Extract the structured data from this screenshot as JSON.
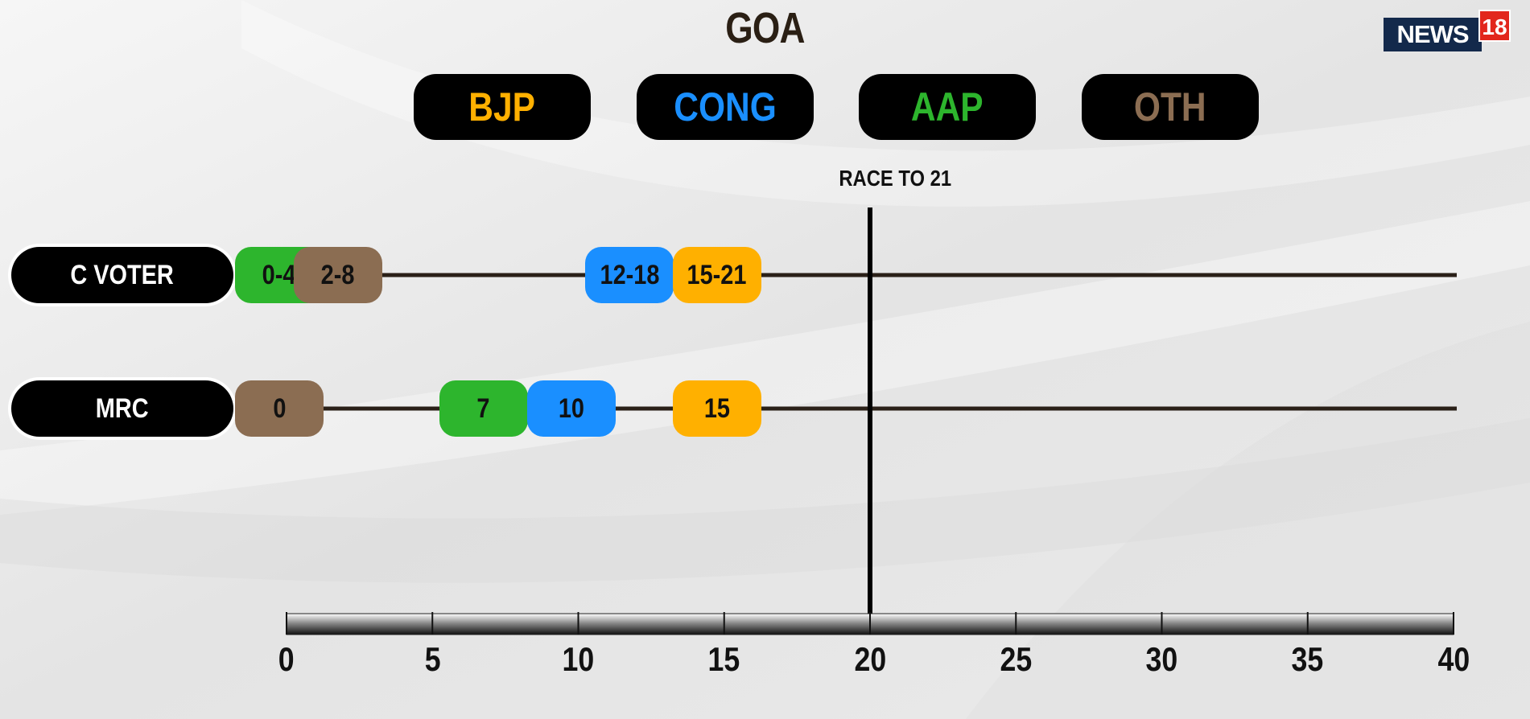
{
  "title": "GOA",
  "logo": {
    "text": "NEWS",
    "number": "18"
  },
  "colors": {
    "BJP": "#ffb000",
    "CONG": "#1a8fff",
    "AAP": "#2db52d",
    "OTH": "#8b6d52"
  },
  "legend": [
    {
      "label": "BJP",
      "key": "BJP"
    },
    {
      "label": "CONG",
      "key": "CONG"
    },
    {
      "label": "AAP",
      "key": "AAP"
    },
    {
      "label": "OTH",
      "key": "OTH"
    }
  ],
  "chart_data": {
    "type": "range-dot",
    "title": "GOA",
    "x_axis": {
      "min": 0,
      "max": 40,
      "ticks": [
        0,
        5,
        10,
        15,
        20,
        25,
        30,
        35,
        40
      ]
    },
    "threshold": {
      "value": 20,
      "label": "RACE TO 21"
    },
    "polls": [
      {
        "name": "C VOTER",
        "marks": [
          {
            "party": "AAP",
            "label": "0-4",
            "low": 0,
            "high": 4
          },
          {
            "party": "OTH",
            "label": "2-8",
            "low": 2,
            "high": 8
          },
          {
            "party": "CONG",
            "label": "12-18",
            "low": 12,
            "high": 18
          },
          {
            "party": "BJP",
            "label": "15-21",
            "low": 15,
            "high": 21
          }
        ]
      },
      {
        "name": "MRC",
        "marks": [
          {
            "party": "OTH",
            "label": "0",
            "value": 0
          },
          {
            "party": "AAP",
            "label": "7",
            "value": 7
          },
          {
            "party": "CONG",
            "label": "10",
            "value": 10
          },
          {
            "party": "BJP",
            "label": "15",
            "value": 15
          }
        ]
      }
    ]
  }
}
